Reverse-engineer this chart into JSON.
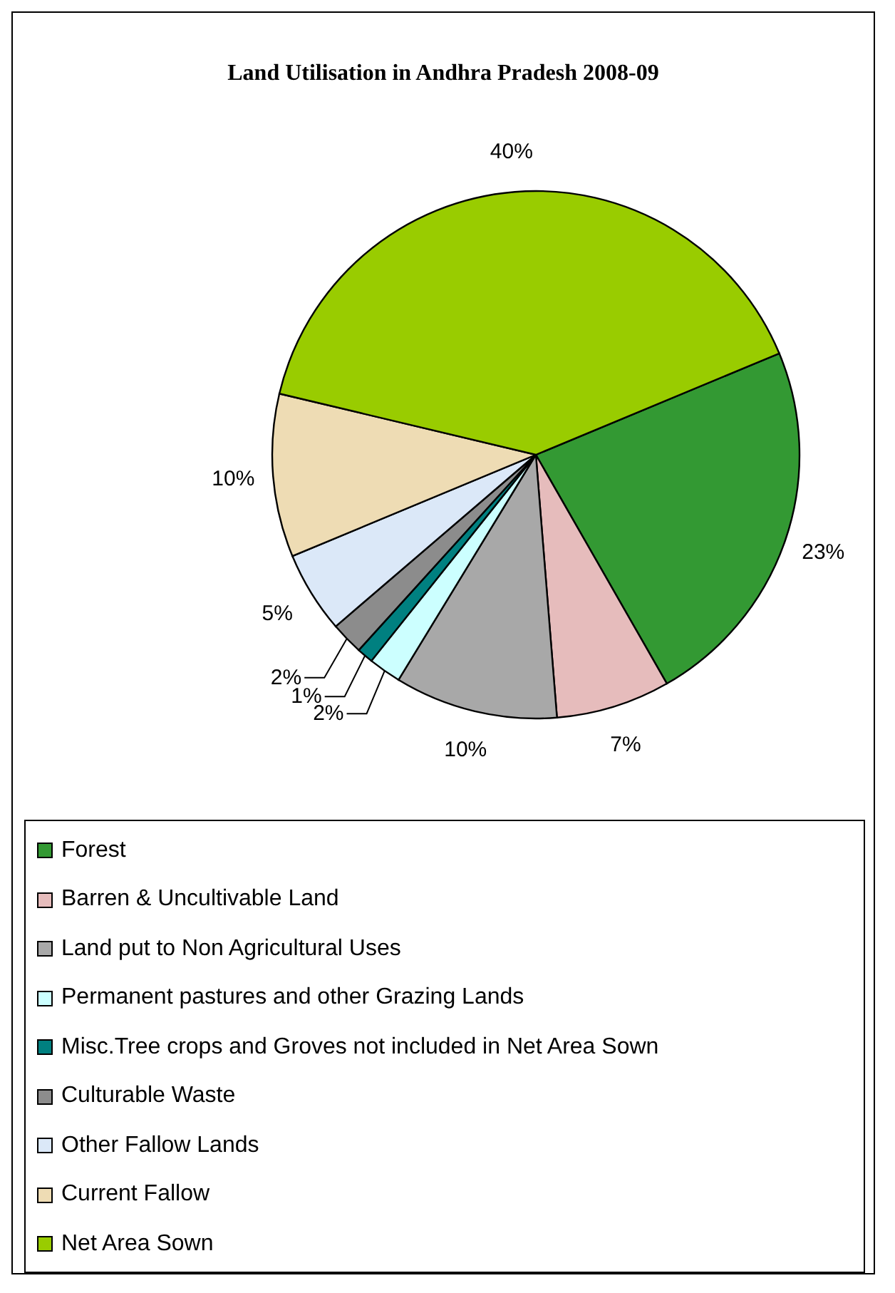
{
  "chart_data": {
    "type": "pie",
    "title": "Land Utilisation in Andhra Pradesh 2008-09",
    "categories": [
      "Forest",
      "Barren & Uncultivable Land",
      "Land put to Non Agricultural Uses",
      "Permanent pastures and other Grazing Lands",
      "Misc.Tree crops and Groves not included in Net Area Sown",
      "Culturable Waste",
      "Other Fallow  Lands",
      "Current Fallow",
      "Net Area Sown"
    ],
    "values": [
      23,
      7,
      10,
      2,
      1,
      2,
      5,
      10,
      40
    ],
    "colors": [
      "#339933",
      "#e6bcbc",
      "#a8a8a8",
      "#ccffff",
      "#008080",
      "#8c8c8c",
      "#dbe8f8",
      "#eedcb4",
      "#99cc00"
    ],
    "value_labels": [
      "23%",
      "7%",
      "10%",
      "2%",
      "1%",
      "2%",
      "5%",
      "10%",
      "40%"
    ],
    "legend": "bottom"
  }
}
